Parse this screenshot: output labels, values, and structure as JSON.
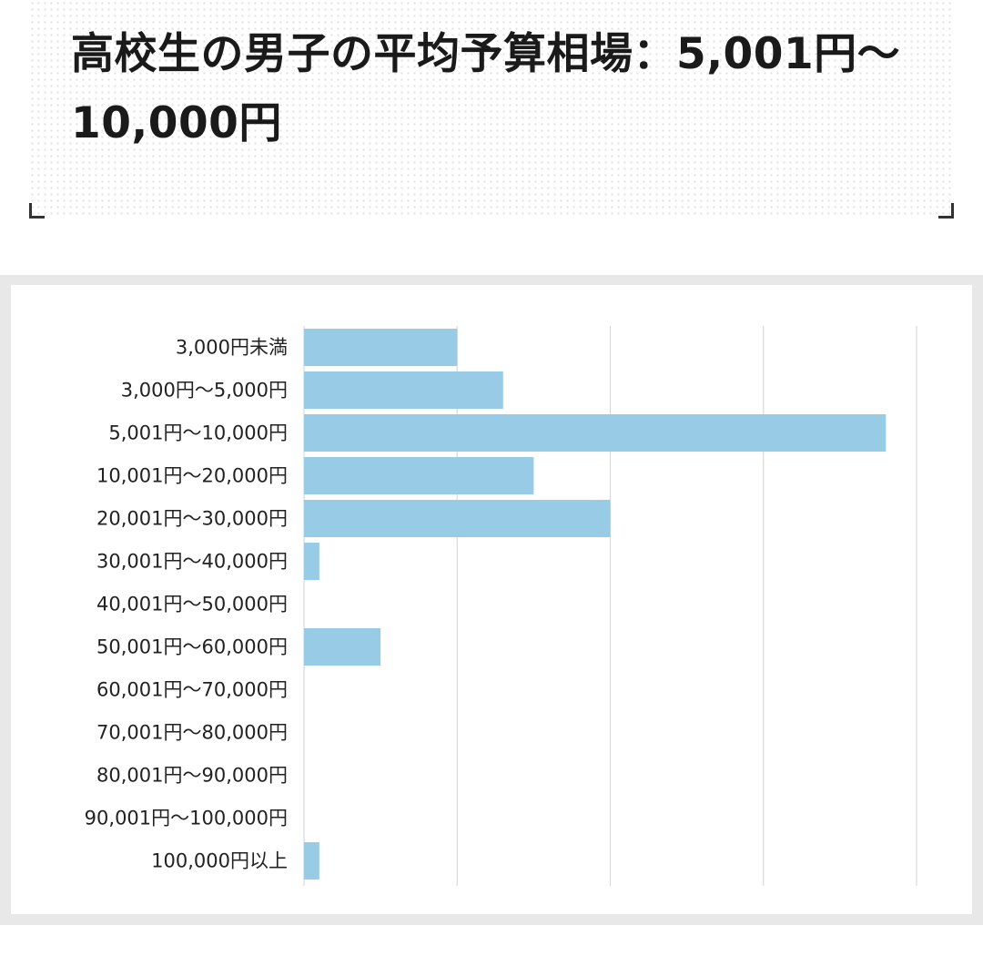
{
  "title": "高校生の男子の平均予算相場：5,001円～10,000円",
  "chart_data": {
    "type": "bar",
    "orientation": "horizontal",
    "title": "",
    "xlabel": "",
    "ylabel": "",
    "categories": [
      "3,000円未満",
      "3,000円～5,000円",
      "5,001円～10,000円",
      "10,001円～20,000円",
      "20,001円～30,000円",
      "30,001円～40,000円",
      "40,001円～50,000円",
      "50,001円～60,000円",
      "60,001円～70,000円",
      "70,001円～80,000円",
      "80,001円～90,000円",
      "90,001円～100,000円",
      "100,000円以上"
    ],
    "values": [
      10,
      13,
      38,
      15,
      20,
      1,
      0,
      5,
      0,
      0,
      0,
      0,
      1
    ],
    "xlim": [
      0,
      40
    ],
    "x_gridlines": [
      10,
      20,
      30,
      40
    ],
    "x_tick_labels_shown": false,
    "grid": true,
    "legend": "none",
    "colors": {
      "bar": "#97cbe6",
      "grid": "#d9d9d9",
      "panel_border": "#e8e8e8"
    }
  }
}
